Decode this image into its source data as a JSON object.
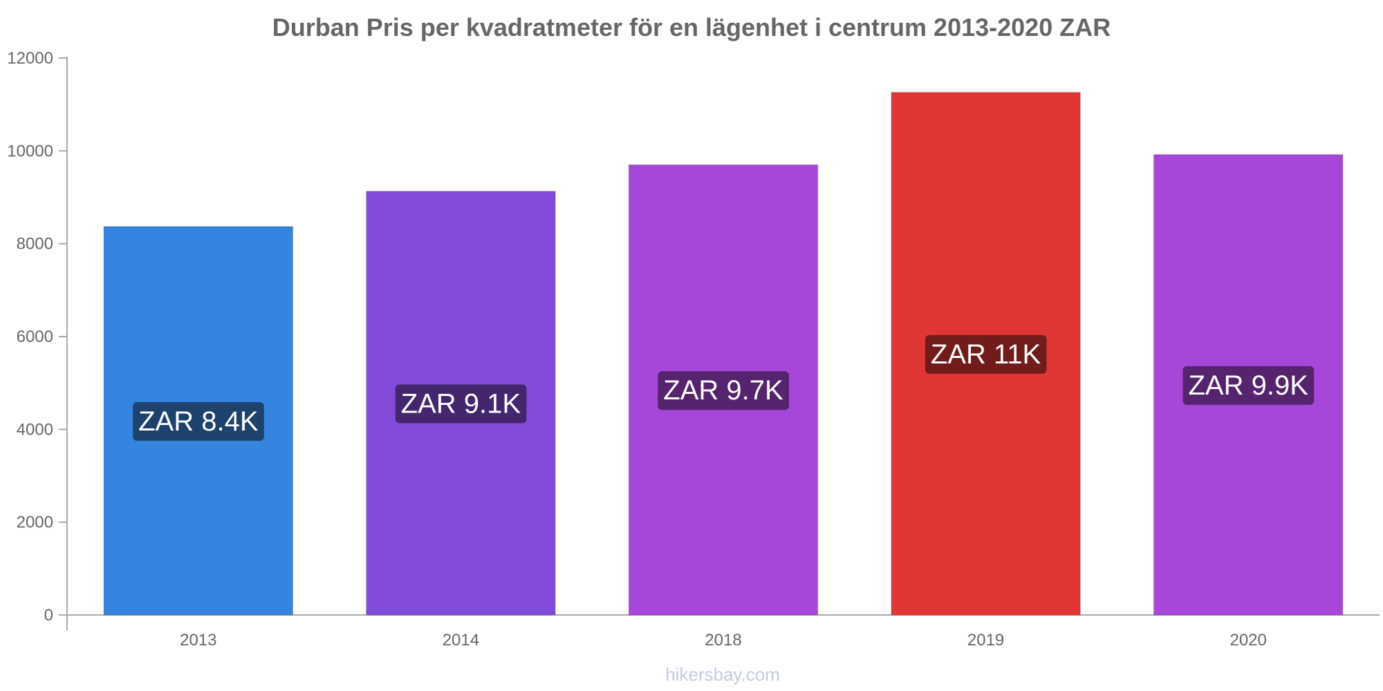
{
  "chart_data": {
    "type": "bar",
    "title": "Durban Pris per kvadratmeter för en lägenhet i centrum 2013-2020 ZAR",
    "categories": [
      "2013",
      "2014",
      "2018",
      "2019",
      "2020"
    ],
    "values": [
      8370,
      9130,
      9700,
      11260,
      9920
    ],
    "data_labels": [
      "ZAR 8.4K",
      "ZAR 9.1K",
      "ZAR 9.7K",
      "ZAR 11K",
      "ZAR 9.9K"
    ],
    "bar_colors": [
      "#3584e0",
      "#824bda",
      "#a747d9",
      "#e03636",
      "#a747d9"
    ],
    "label_bg_colors": [
      "#1d426e",
      "#43266e",
      "#56246e",
      "#721b1b",
      "#56246e"
    ],
    "xlabel": "",
    "ylabel": "",
    "ylim": [
      0,
      12000
    ],
    "yticks": [
      "0",
      "2000",
      "4000",
      "6000",
      "8000",
      "10000",
      "12000"
    ],
    "grid": false,
    "legend": "none"
  },
  "footer": {
    "credit": "hikersbay.com"
  }
}
